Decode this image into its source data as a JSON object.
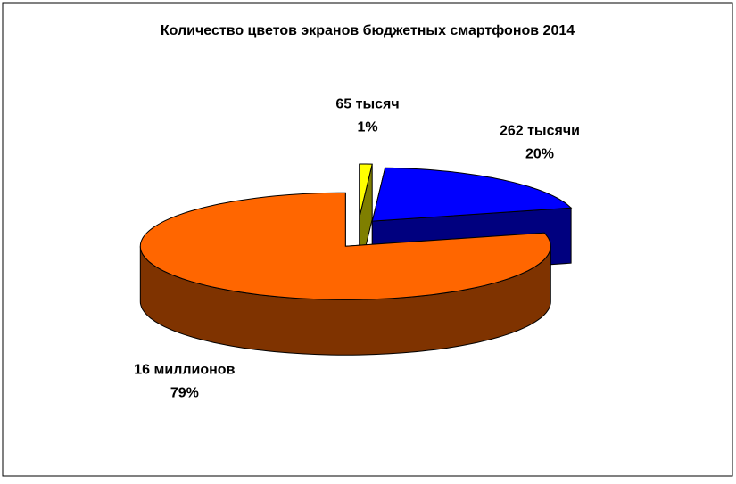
{
  "chart_data": {
    "type": "pie3d",
    "title": "Количество цветов экранов бюджетных смартфонов 2014",
    "categories": [
      "65 тысяч",
      "262 тысячи",
      "16 миллионов"
    ],
    "values": [
      1,
      20,
      79
    ],
    "value_labels": [
      "1%",
      "20%",
      "79%"
    ],
    "colors": [
      "#ffff00",
      "#0000ff",
      "#ff6600"
    ]
  }
}
